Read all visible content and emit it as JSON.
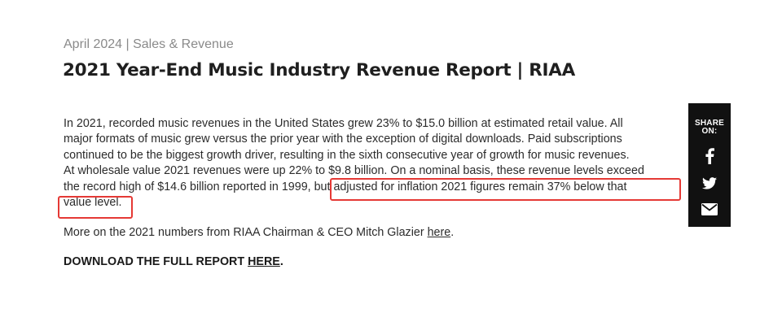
{
  "header": {
    "meta": "April 2024 | Sales & Revenue",
    "title": "2021 Year-End Music Industry Revenue Report | RIAA"
  },
  "article": {
    "lines": [
      "In 2021, recorded music revenues in the United States grew 23% to $15.0 billion at estimated retail value. All",
      "major formats of music grew versus the prior year with the exception of digital downloads. Paid subscriptions",
      "continued to be the biggest growth driver, resulting in the sixth consecutive year of growth for music revenues.",
      "At wholesale value 2021 revenues were up 22% to $9.8 billion. On a nominal basis, these revenue levels exceed",
      "the record high of $14.6 billion reported in 1999,",
      " but adjusted for inflation 2021 figures remain 37% below that",
      "value level."
    ],
    "more_text": "More on the 2021 numbers from RIAA Chairman & CEO Mitch Glazier ",
    "more_link": "here",
    "more_end": ".",
    "download_text": "DOWNLOAD THE FULL REPORT ",
    "download_link": "HERE",
    "download_end": "."
  },
  "share": {
    "label_line1": "SHARE",
    "label_line2": "ON:",
    "icons": [
      "facebook-icon",
      "twitter-icon",
      "email-icon"
    ]
  },
  "annotation": {
    "color": "#e53935"
  }
}
